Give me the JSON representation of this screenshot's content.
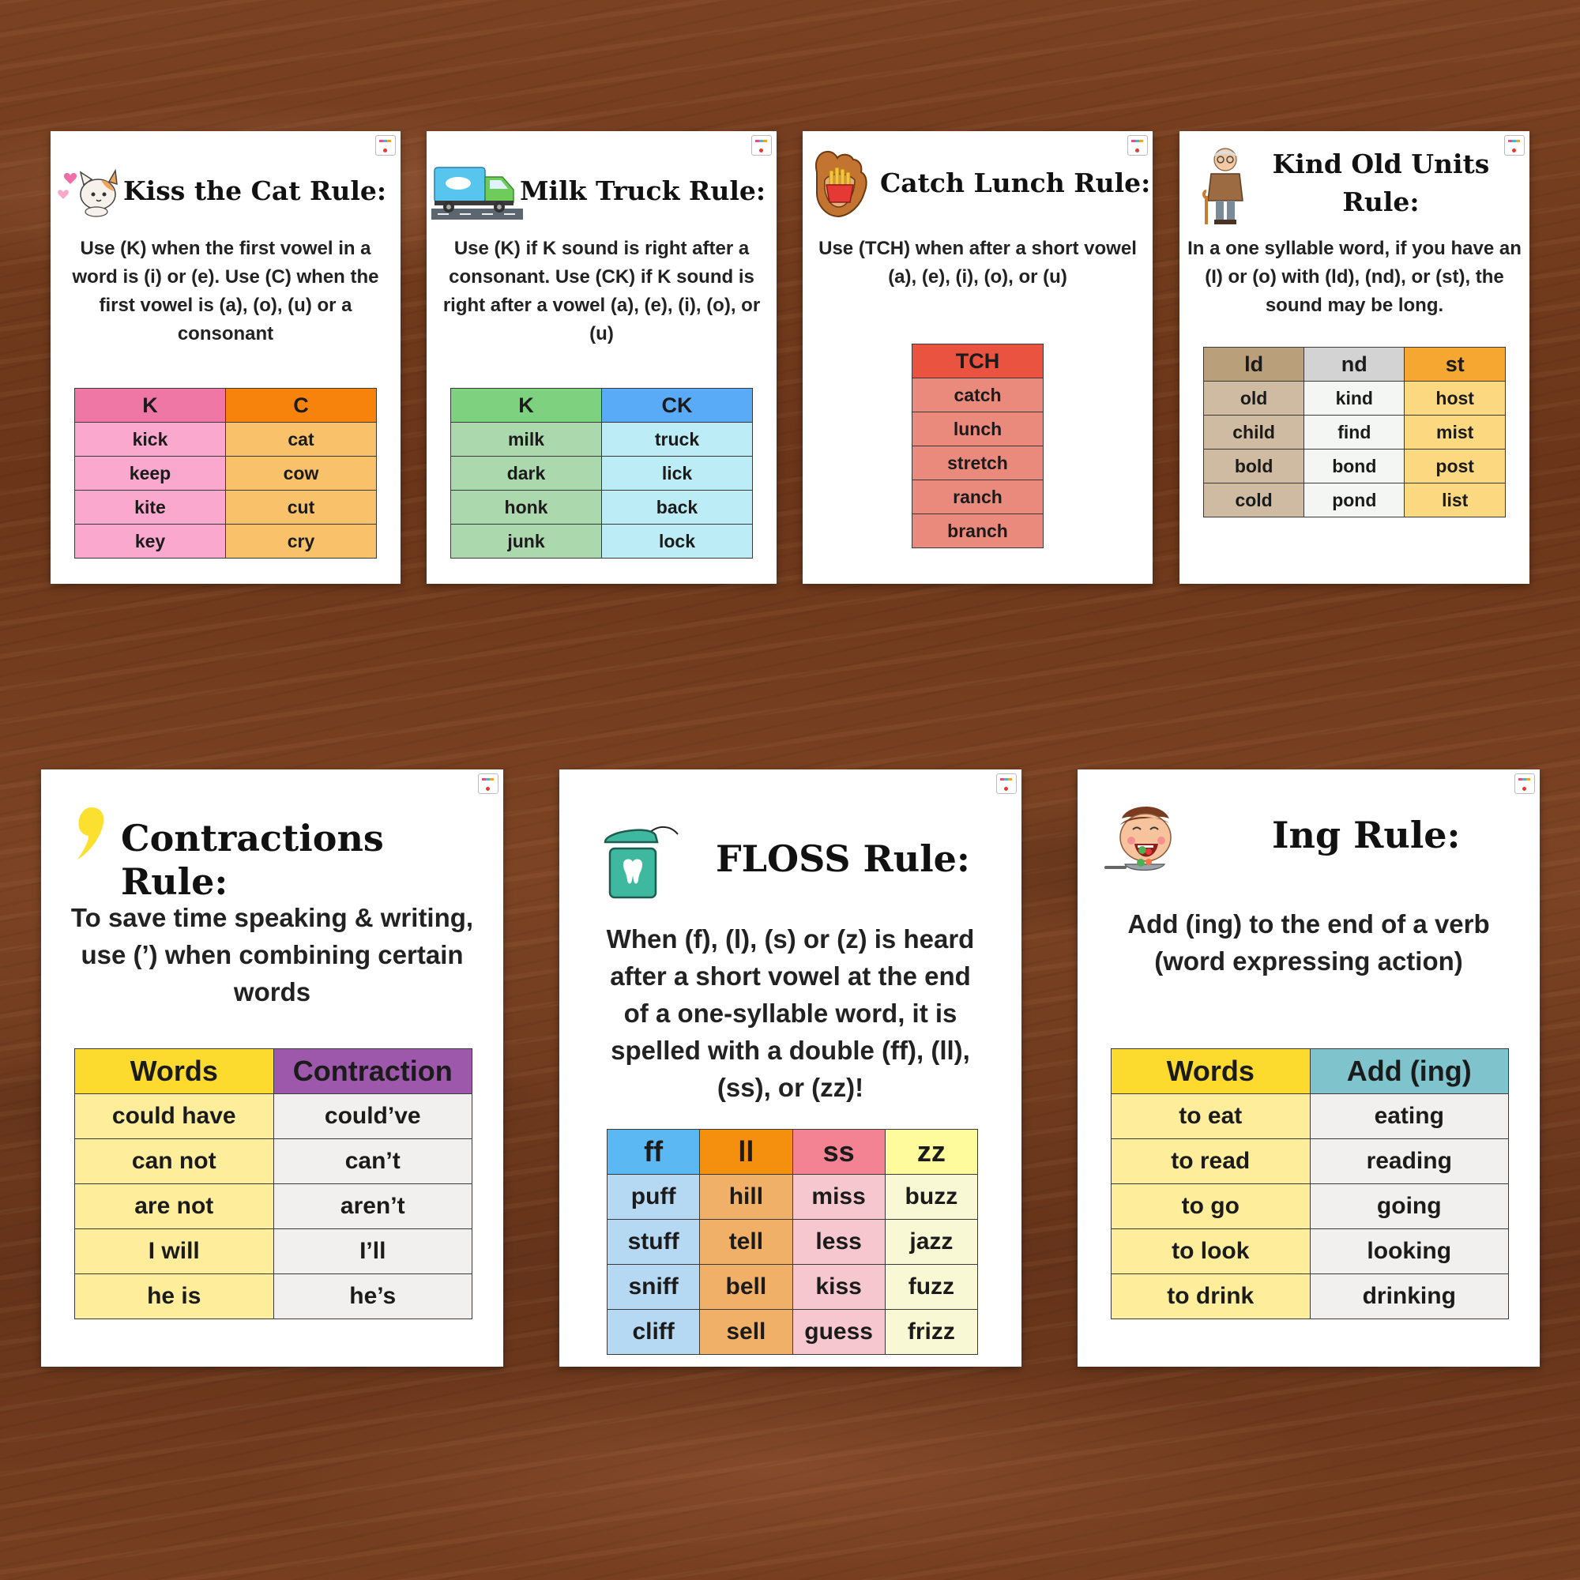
{
  "cards": {
    "kiss_cat": {
      "title": "Kiss the Cat Rule:",
      "icon": "cat-icon",
      "description": "Use (K) when the first vowel in a word is (i) or (e). Use (C) when the first vowel is (a), (o), (u) or a consonant",
      "headers": [
        "K",
        "C"
      ],
      "rows": [
        [
          "kick",
          "cat"
        ],
        [
          "keep",
          "cow"
        ],
        [
          "kite",
          "cut"
        ],
        [
          "key",
          "cry"
        ]
      ],
      "colors": {
        "col1_head": "#ef77a6",
        "col1": "#fba8cf",
        "col2_head": "#f7820c",
        "col2": "#f9c16a"
      }
    },
    "milk_truck": {
      "title": "Milk Truck Rule:",
      "icon": "milk-truck-icon",
      "description": "Use (K) if K sound is right after a consonant. Use (CK) if K sound is right after a vowel (a), (e), (i), (o), or (u)",
      "headers": [
        "K",
        "CK"
      ],
      "rows": [
        [
          "milk",
          "truck"
        ],
        [
          "dark",
          "lick"
        ],
        [
          "honk",
          "back"
        ],
        [
          "junk",
          "lock"
        ]
      ],
      "colors": {
        "col1_head": "#7ed17e",
        "col1": "#acd8ad",
        "col2_head": "#5aabf7",
        "col2": "#bcecf6"
      }
    },
    "catch_lunch": {
      "title": "Catch Lunch Rule:",
      "icon": "baseball-glove-icon",
      "description": "Use (TCH) when after a short vowel (a), (e), (i), (o), or (u)",
      "headers": [
        "TCH"
      ],
      "rows": [
        [
          "catch"
        ],
        [
          "lunch"
        ],
        [
          "stretch"
        ],
        [
          "ranch"
        ],
        [
          "branch"
        ]
      ],
      "colors": {
        "col1_head": "#e9533f",
        "col1": "#ea8a7c"
      }
    },
    "kind_old": {
      "title_line1": "Kind Old Units",
      "title_line2": "Rule:",
      "icon": "old-man-icon",
      "description": "In a one syllable word, if you have an (I) or (o) with (ld), (nd), or (st), the sound may be long.",
      "headers": [
        "ld",
        "nd",
        "st"
      ],
      "rows": [
        [
          "old",
          "kind",
          "host"
        ],
        [
          "child",
          "find",
          "mist"
        ],
        [
          "bold",
          "bond",
          "post"
        ],
        [
          "cold",
          "pond",
          "list"
        ]
      ],
      "colors": {
        "col1_head": "#b9a07b",
        "col1": "#cebba1",
        "col2_head": "#d3d3d3",
        "col2": "#f4f6f3",
        "col3_head": "#f6a732",
        "col3": "#fcd981"
      }
    },
    "contractions": {
      "title": "Contractions Rule:",
      "icon": "apostrophe-icon",
      "description": "To save time speaking & writing, use (’) when combining certain words",
      "headers": [
        "Words",
        "Contraction"
      ],
      "rows": [
        [
          "could have",
          "could’ve"
        ],
        [
          "can not",
          "can’t"
        ],
        [
          "are not",
          "aren’t"
        ],
        [
          "I will",
          "I’ll"
        ],
        [
          "he is",
          "he’s"
        ]
      ],
      "colors": {
        "col1_head": "#fddb2e",
        "col1": "#feee9c",
        "col2_head": "#9d58ab",
        "col2": "#f2f0ee"
      }
    },
    "floss": {
      "title": "FLOSS Rule:",
      "icon": "dental-floss-icon",
      "description": "When (f), (l), (s) or (z) is heard after a short vowel at the end of a one-syllable word, it is spelled with a double (ff), (ll), (ss), or (zz)!",
      "headers": [
        "ff",
        "ll",
        "ss",
        "zz"
      ],
      "rows": [
        [
          "puff",
          "hill",
          "miss",
          "buzz"
        ],
        [
          "stuff",
          "tell",
          "less",
          "jazz"
        ],
        [
          "sniff",
          "bell",
          "kiss",
          "fuzz"
        ],
        [
          "cliff",
          "sell",
          "guess",
          "frizz"
        ]
      ],
      "colors": {
        "col1_head": "#5bb8f3",
        "col1": "#b5d9f2",
        "col2_head": "#f5900f",
        "col2": "#f1b068",
        "col3_head": "#f38393",
        "col3": "#f6c7cf",
        "col4_head": "#fdfb9c",
        "col4": "#f9f8d5"
      }
    },
    "ing": {
      "title": "Ing Rule:",
      "icon": "eating-boy-icon",
      "description": "Add (ing) to the end of a verb (word expressing action)",
      "headers": [
        "Words",
        "Add (ing)"
      ],
      "rows": [
        [
          "to eat",
          "eating"
        ],
        [
          "to read",
          "reading"
        ],
        [
          "to go",
          "going"
        ],
        [
          "to look",
          "looking"
        ],
        [
          "to drink",
          "drinking"
        ]
      ],
      "colors": {
        "col1_head": "#fddb2e",
        "col1": "#feee9c",
        "col2_head": "#7fc4cd",
        "col2": "#f2f0ee"
      }
    }
  }
}
